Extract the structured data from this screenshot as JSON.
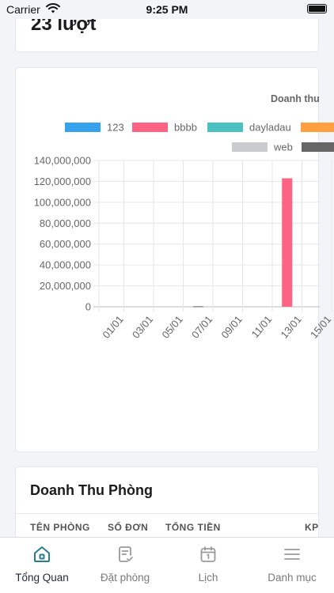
{
  "status_bar": {
    "carrier": "Carrier",
    "time": "9:25 PM"
  },
  "visits": {
    "value": "23 lượt"
  },
  "revenue_chart": {
    "title": "Doanh thu"
  },
  "chart_data": {
    "type": "bar",
    "title": "Doanh thu",
    "series": [
      {
        "name": "123",
        "color": "#36a2eb",
        "values": [
          0,
          0,
          0,
          0,
          0,
          0,
          0,
          0
        ]
      },
      {
        "name": "bbbb",
        "color": "#ff6384",
        "values": [
          0,
          0,
          0,
          0,
          0,
          0,
          123000000,
          0
        ]
      },
      {
        "name": "dayladau",
        "color": "#4bc0c0",
        "values": [
          0,
          0,
          0,
          0,
          0,
          0,
          0,
          0
        ]
      },
      {
        "name": "",
        "color": "#ff9f40",
        "values": [
          0,
          0,
          0,
          0,
          0,
          0,
          0,
          0
        ]
      },
      {
        "name": "web",
        "color": "#c9cbcf",
        "values": [
          0,
          0,
          0,
          0,
          0,
          0,
          0,
          0
        ]
      },
      {
        "name": "",
        "color": "#666666",
        "values": [
          0,
          0,
          0,
          500000,
          0,
          0,
          0,
          0
        ]
      }
    ],
    "x_ticks": [
      "01/01",
      "03/01",
      "05/01",
      "07/01",
      "09/01",
      "11/01",
      "13/01",
      "15/01"
    ],
    "y_ticks": [
      "140,000,000",
      "120,000,000",
      "100,000,000",
      "80,000,000",
      "60,000,000",
      "40,000,000",
      "20,000,000",
      "0"
    ],
    "ylim": [
      0,
      140000000
    ],
    "grid": true,
    "legend_position": "top"
  },
  "rooms": {
    "title": "Doanh Thu Phòng",
    "columns": [
      "TÊN PHÒNG",
      "SỐ ĐƠN",
      "TỔNG TIỀN",
      "KP"
    ]
  },
  "tabs": [
    {
      "label": "Tổng Quan",
      "icon": "home-icon",
      "active": true
    },
    {
      "label": "Đặt phòng",
      "icon": "booking-icon",
      "active": false
    },
    {
      "label": "Lịch",
      "icon": "calendar-icon",
      "active": false
    },
    {
      "label": "Danh mục",
      "icon": "menu-icon",
      "active": false
    }
  ],
  "colors": {
    "accent": "#2a7d8c",
    "inactive": "#9a9a9a"
  }
}
